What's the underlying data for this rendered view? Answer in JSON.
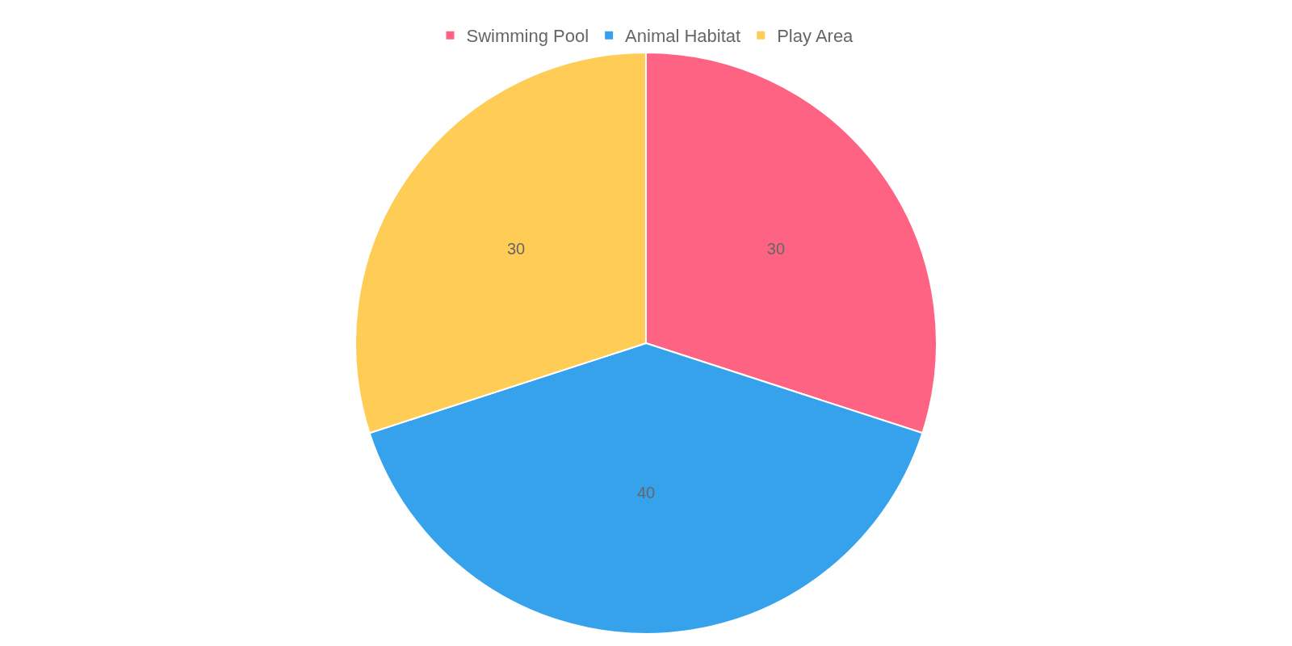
{
  "chart_data": {
    "type": "pie",
    "categories": [
      "Swimming Pool",
      "Animal Habitat",
      "Play Area"
    ],
    "values": [
      30,
      40,
      30
    ],
    "colors": [
      "#ff6384",
      "#36a2eb",
      "#ffcd56"
    ],
    "data_labels": true,
    "legend": "top"
  }
}
